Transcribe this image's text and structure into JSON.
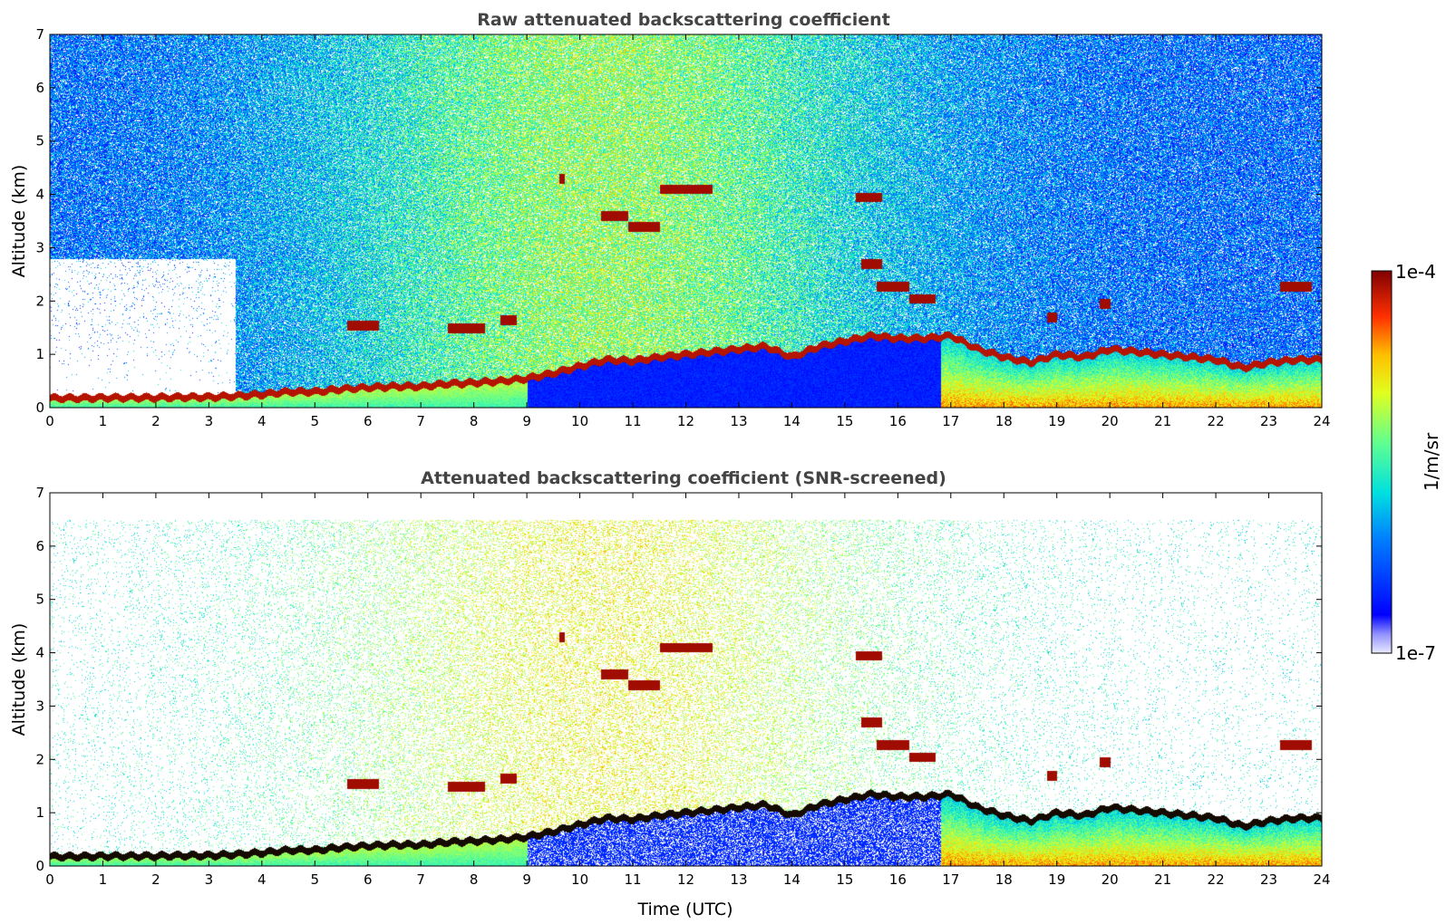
{
  "chart_data": [
    {
      "type": "heatmap",
      "title": "Raw attenuated backscattering coefficient",
      "xlabel": "",
      "ylabel": "Altitude (km)",
      "xlim": [
        0,
        24
      ],
      "ylim": [
        0,
        7
      ],
      "xticks": [
        "0",
        "1",
        "2",
        "3",
        "4",
        "5",
        "6",
        "7",
        "8",
        "9",
        "10",
        "11",
        "12",
        "13",
        "14",
        "15",
        "16",
        "17",
        "18",
        "19",
        "20",
        "21",
        "22",
        "23",
        "24"
      ],
      "yticks": [
        "0",
        "1",
        "2",
        "3",
        "4",
        "5",
        "6",
        "7"
      ],
      "colorscale": "jet",
      "screened": false,
      "layers": [
        {
          "t": [
            0,
            0.5,
            1,
            1.5,
            2,
            2.5,
            3,
            3.5,
            4,
            4.5,
            5,
            5.5,
            6,
            6.5,
            7,
            7.5,
            8,
            8.5,
            9,
            9.5,
            10,
            10.5,
            11,
            11.5,
            12,
            12.5,
            13,
            13.5,
            14,
            14.5,
            15,
            15.5,
            16,
            16.5,
            17,
            17.5,
            18,
            18.5,
            19,
            19.5,
            20,
            20.5,
            21,
            21.5,
            22,
            22.5,
            23,
            23.5
          ],
          "z": [
            0.18,
            0.18,
            0.19,
            0.19,
            0.19,
            0.2,
            0.2,
            0.22,
            0.25,
            0.3,
            0.3,
            0.35,
            0.38,
            0.4,
            0.4,
            0.45,
            0.47,
            0.5,
            0.55,
            0.65,
            0.78,
            0.9,
            0.88,
            0.95,
            1.0,
            1.05,
            1.1,
            1.15,
            0.95,
            1.15,
            1.25,
            1.35,
            1.3,
            1.3,
            1.35,
            1.1,
            0.95,
            0.85,
            1.0,
            0.95,
            1.1,
            1.05,
            1.0,
            0.95,
            0.9,
            0.75,
            0.85,
            0.9
          ]
        }
      ],
      "clouds": [
        {
          "t0": 10.4,
          "t1": 10.9,
          "z": 3.6
        },
        {
          "t0": 10.9,
          "t1": 11.5,
          "z": 3.4
        },
        {
          "t0": 11.5,
          "t1": 12.5,
          "z": 4.1
        },
        {
          "t0": 9.6,
          "t1": 9.7,
          "z": 4.3
        },
        {
          "t0": 15.2,
          "t1": 15.7,
          "z": 3.95
        },
        {
          "t0": 15.3,
          "t1": 15.7,
          "z": 2.7
        },
        {
          "t0": 15.6,
          "t1": 16.2,
          "z": 2.28
        },
        {
          "t0": 16.2,
          "t1": 16.7,
          "z": 2.05
        },
        {
          "t0": 23.2,
          "t1": 23.8,
          "z": 2.28
        },
        {
          "t0": 5.6,
          "t1": 6.2,
          "z": 1.55
        },
        {
          "t0": 7.5,
          "t1": 8.2,
          "z": 1.5
        },
        {
          "t0": 8.5,
          "t1": 8.8,
          "z": 1.65
        },
        {
          "t0": 19.8,
          "t1": 20.0,
          "z": 1.95
        },
        {
          "t0": 18.8,
          "t1": 19.0,
          "z": 1.7
        }
      ]
    },
    {
      "type": "heatmap",
      "title": "Attenuated backscattering coefficient (SNR-screened)",
      "xlabel": "Time (UTC)",
      "ylabel": "Altitude (km)",
      "xlim": [
        0,
        24
      ],
      "ylim": [
        0,
        7
      ],
      "xticks": [
        "0",
        "1",
        "2",
        "3",
        "4",
        "5",
        "6",
        "7",
        "8",
        "9",
        "10",
        "11",
        "12",
        "13",
        "14",
        "15",
        "16",
        "17",
        "18",
        "19",
        "20",
        "21",
        "22",
        "23",
        "24"
      ],
      "yticks": [
        "0",
        "1",
        "2",
        "3",
        "4",
        "5",
        "6",
        "7"
      ],
      "colorscale": "jet",
      "screened": true
    }
  ],
  "colorbar": {
    "max_label": "1e-4",
    "min_label": "1e-7",
    "unit_label": "1/m/sr",
    "vmin": 1e-07,
    "vmax": 0.0001
  }
}
